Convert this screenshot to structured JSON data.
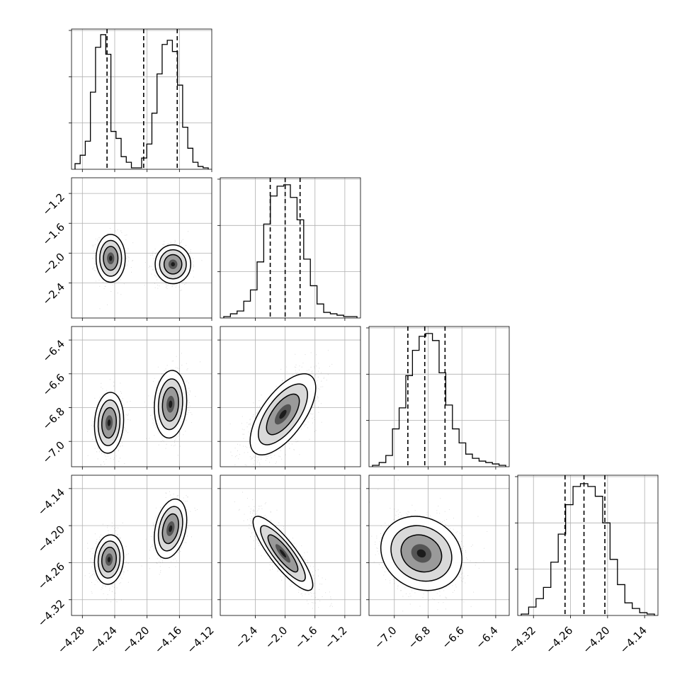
{
  "chart_data": {
    "type": "corner",
    "grid": true,
    "parameters": [
      {
        "name": "",
        "range": [
          -4.2934,
          -4.12
        ],
        "ticks": [
          -4.28,
          -4.24,
          -4.2,
          -4.16,
          -4.12
        ],
        "tick_labels": [
          "−4.28",
          "−4.24",
          "−4.20",
          "−4.16",
          "−4.12"
        ],
        "quantiles": [
          -4.2495,
          -4.2042,
          -4.1627
        ],
        "histogram": [
          0.04,
          0.1,
          0.2,
          0.55,
          0.87,
          0.96,
          0.82,
          0.27,
          0.22,
          0.09,
          0.05,
          0.01,
          0.01,
          0.08,
          0.18,
          0.4,
          0.68,
          0.89,
          0.92,
          0.84,
          0.6,
          0.3,
          0.15,
          0.05,
          0.02,
          0.01
        ]
      },
      {
        "name": "",
        "range": [
          -2.87,
          -0.99
        ],
        "ticks": [
          -2.4,
          -2.0,
          -1.6,
          -1.2
        ],
        "tick_labels": [
          "−2.4",
          "−2.0",
          "−1.6",
          "−1.2"
        ],
        "quantiles": [
          -2.2,
          -2.0,
          -1.8
        ],
        "histogram": [
          0.01,
          0.03,
          0.05,
          0.12,
          0.2,
          0.4,
          0.67,
          0.87,
          0.94,
          0.95,
          0.86,
          0.7,
          0.42,
          0.23,
          0.1,
          0.04,
          0.03,
          0.02,
          0.01,
          0.01
        ]
      },
      {
        "name": "",
        "range": [
          -7.15,
          -6.32
        ],
        "ticks": [
          -7.0,
          -6.8,
          -6.6,
          -6.4
        ],
        "tick_labels": [
          "−7.0",
          "−6.8",
          "−6.6",
          "−6.4"
        ],
        "quantiles": [
          -6.92,
          -6.82,
          -6.7
        ],
        "histogram": [
          0.01,
          0.03,
          0.08,
          0.27,
          0.42,
          0.65,
          0.83,
          0.93,
          0.95,
          0.9,
          0.67,
          0.44,
          0.27,
          0.17,
          0.09,
          0.06,
          0.04,
          0.03,
          0.02,
          0.01
        ]
      },
      {
        "name": "",
        "range": [
          -4.3455,
          -4.1184
        ],
        "ticks": [
          -4.32,
          -4.26,
          -4.2,
          -4.14
        ],
        "tick_labels": [
          "−4.32",
          "−4.26",
          "−4.20",
          "−4.14"
        ],
        "quantiles": [
          -4.2689,
          -4.2382,
          -4.2044
        ],
        "histogram": [
          0.01,
          0.06,
          0.12,
          0.2,
          0.38,
          0.58,
          0.79,
          0.92,
          0.94,
          0.92,
          0.85,
          0.66,
          0.4,
          0.22,
          0.09,
          0.05,
          0.02,
          0.01
        ]
      }
    ],
    "pairs": [
      {
        "x": 0,
        "y": 1,
        "clusters": [
          {
            "mean": [
              -4.245,
              -2.07
            ],
            "sd": [
              0.009,
              0.16
            ],
            "rho": 0.0,
            "weight": 0.5
          },
          {
            "mean": [
              -4.168,
              -2.15
            ],
            "sd": [
              0.011,
              0.13
            ],
            "rho": 0.0,
            "weight": 0.5
          }
        ]
      },
      {
        "x": 0,
        "y": 2,
        "clusters": [
          {
            "mean": [
              -4.247,
              -6.89
            ],
            "sd": [
              0.009,
              0.09
            ],
            "rho": 0.1,
            "weight": 0.5
          },
          {
            "mean": [
              -4.171,
              -6.78
            ],
            "sd": [
              0.01,
              0.1
            ],
            "rho": 0.1,
            "weight": 0.5
          }
        ]
      },
      {
        "x": 0,
        "y": 3,
        "clusters": [
          {
            "mean": [
              -4.247,
              -4.255
            ],
            "sd": [
              0.009,
              0.02
            ],
            "rho": 0.1,
            "weight": 0.5
          },
          {
            "mean": [
              -4.171,
              -4.205
            ],
            "sd": [
              0.01,
              0.024
            ],
            "rho": 0.3,
            "weight": 0.5
          }
        ]
      },
      {
        "x": 1,
        "y": 2,
        "clusters": [
          {
            "mean": [
              -2.03,
              -6.84
            ],
            "sd": [
              0.22,
              0.12
            ],
            "rho": 0.65,
            "weight": 1.0
          }
        ]
      },
      {
        "x": 1,
        "y": 3,
        "clusters": [
          {
            "mean": [
              -2.03,
              -4.245
            ],
            "sd": [
              0.2,
              0.03
            ],
            "rho": -0.85,
            "weight": 1.0
          }
        ]
      },
      {
        "x": 2,
        "y": 3,
        "clusters": [
          {
            "mean": [
              -6.84,
              -4.245
            ],
            "sd": [
              0.12,
              0.03
            ],
            "rho": -0.15,
            "weight": 1.0
          }
        ]
      }
    ]
  }
}
